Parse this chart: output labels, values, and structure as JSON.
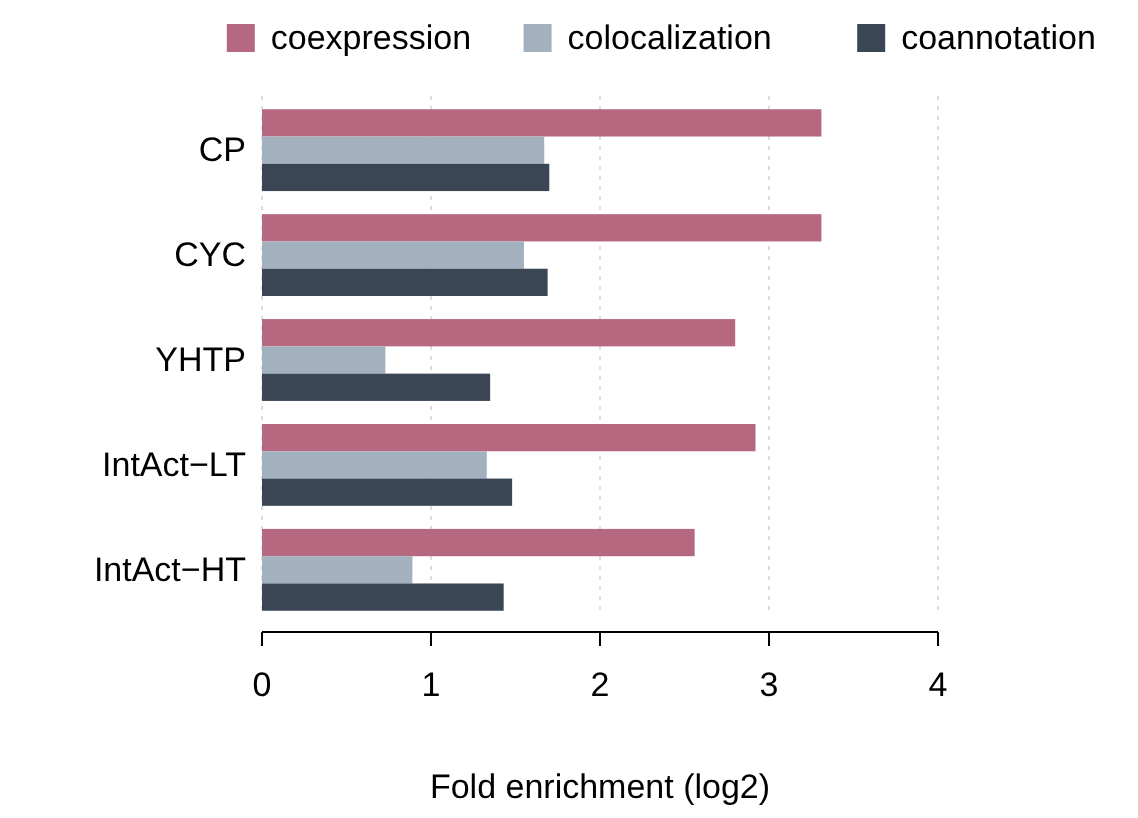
{
  "chart_data": {
    "type": "bar",
    "orientation": "horizontal",
    "categories": [
      "CP",
      "CYC",
      "YHTP",
      "IntAct−LT",
      "IntAct−HT"
    ],
    "series": [
      {
        "name": "coexpression",
        "color": "#b5687f",
        "values": [
          3.31,
          3.31,
          2.8,
          2.92,
          2.56
        ]
      },
      {
        "name": "colocalization",
        "color": "#a3b1bf",
        "values": [
          1.67,
          1.55,
          0.73,
          1.33,
          0.89
        ]
      },
      {
        "name": "coannotation",
        "color": "#3a4653",
        "values": [
          1.7,
          1.69,
          1.35,
          1.48,
          1.43
        ]
      }
    ],
    "xlabel": "Fold enrichment (log2)",
    "xlim": [
      0,
      4
    ],
    "xticks": [
      0,
      1,
      2,
      3,
      4
    ],
    "grid": "x",
    "legend": "top"
  }
}
